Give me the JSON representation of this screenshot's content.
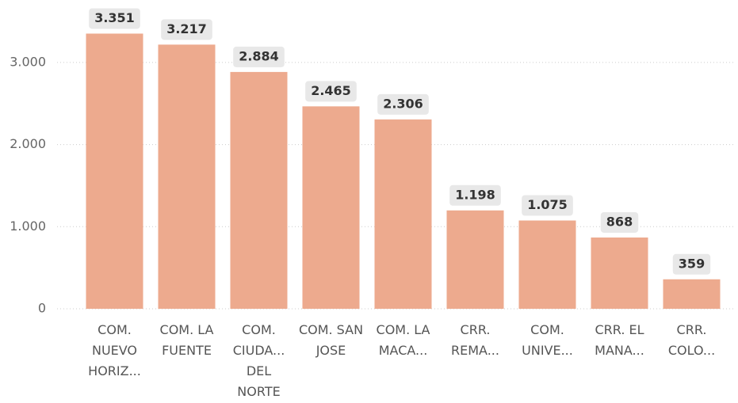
{
  "chart_data": {
    "type": "bar",
    "categories": [
      "COM. NUEVO HORIZ...",
      "COM. LA FUENTE",
      "COM. CIUDA... DEL NORTE",
      "COM. SAN JOSE",
      "COM. LA MACA...",
      "CRR. REMA...",
      "COM. UNIVE...",
      "CRR. EL MANA...",
      "CRR. COLO..."
    ],
    "values": [
      3351,
      3217,
      2884,
      2465,
      2306,
      1198,
      1075,
      868,
      359
    ],
    "value_labels": [
      "3.351",
      "3.217",
      "2.884",
      "2.465",
      "2.306",
      "1.198",
      "1.075",
      "868",
      "359"
    ],
    "color": "#edaa8e",
    "ylim": [
      0,
      3500
    ],
    "yticks": [
      0,
      {
        "value": 1000,
        "label": "1.000"
      },
      {
        "value": 2000,
        "label": "2.000"
      },
      {
        "value": 3000,
        "label": "3.000"
      }
    ],
    "grid": true
  }
}
